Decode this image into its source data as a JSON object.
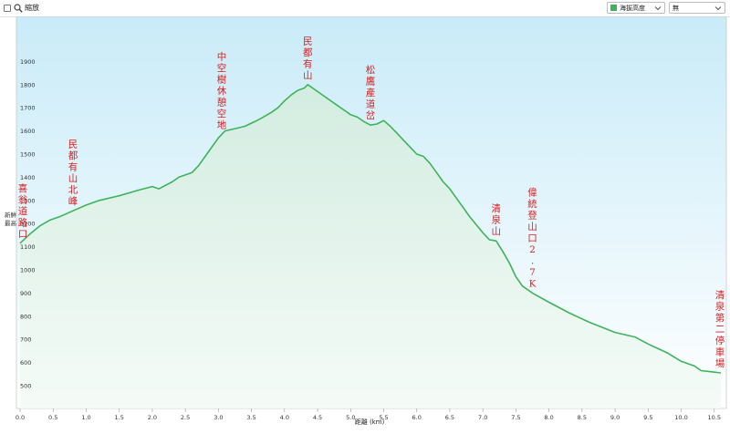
{
  "toolbar": {
    "zoom_label": "縮放",
    "series_select": "海拔高度",
    "second_select": "無",
    "icons": [
      "checkbox",
      "zoom-icon",
      "chevron-down-icon"
    ]
  },
  "colors": {
    "line": "#3db35a",
    "fill_top": "#d3ecdf",
    "plot_top": "#c9ebf8",
    "plot_bottom": "#ffffff",
    "waypoint_text": "#d62020"
  },
  "chart_data": {
    "type": "area",
    "xlabel": "距離 (km)",
    "ylabel": "",
    "xlim": [
      0,
      10.6
    ],
    "ylim": [
      370,
      2000
    ],
    "x_ticks": [
      "0.0",
      "0.5",
      "1.0",
      "1.5",
      "2.0",
      "2.5",
      "3.0",
      "3.5",
      "4.0",
      "4.5",
      "5.0",
      "5.5",
      "6.0",
      "6.5",
      "7.0",
      "7.5",
      "8.0",
      "8.5",
      "9.0",
      "9.5",
      "10.0",
      "10.5"
    ],
    "y_ticks": [
      "500",
      "600",
      "700",
      "800",
      "900",
      "1000",
      "1100",
      "1200",
      "1300",
      "1400",
      "1500",
      "1600",
      "1700",
      "1800",
      "1900"
    ],
    "grid": false,
    "series": [
      {
        "x": [
          0,
          0.15,
          0.3,
          0.45,
          0.6,
          0.8,
          1.0,
          1.2,
          1.5,
          1.8,
          2.0,
          2.1,
          2.3,
          2.4,
          2.5,
          2.6,
          2.7,
          2.8,
          2.9,
          3.0,
          3.1,
          3.25,
          3.4,
          3.55,
          3.65,
          3.8,
          3.9,
          4.0,
          4.1,
          4.2,
          4.3,
          4.35,
          4.5,
          4.6,
          4.8,
          5.0,
          5.1,
          5.2,
          5.3,
          5.4,
          5.5,
          5.6,
          5.7,
          5.8,
          5.9,
          6.0,
          6.1,
          6.2,
          6.3,
          6.4,
          6.5,
          6.6,
          6.8,
          7.0,
          7.1,
          7.2,
          7.3,
          7.4,
          7.5,
          7.6,
          7.75,
          8.0,
          8.3,
          8.6,
          9.0,
          9.3,
          9.5,
          9.8,
          10.0,
          10.2,
          10.3,
          10.45,
          10.6
        ],
        "y": [
          1115,
          1155,
          1190,
          1215,
          1230,
          1255,
          1280,
          1300,
          1320,
          1345,
          1360,
          1350,
          1380,
          1400,
          1410,
          1420,
          1450,
          1490,
          1530,
          1570,
          1600,
          1610,
          1620,
          1640,
          1655,
          1680,
          1700,
          1730,
          1755,
          1775,
          1785,
          1800,
          1770,
          1750,
          1710,
          1670,
          1660,
          1640,
          1625,
          1630,
          1645,
          1620,
          1590,
          1560,
          1530,
          1500,
          1490,
          1460,
          1420,
          1380,
          1350,
          1310,
          1230,
          1160,
          1130,
          1125,
          1080,
          1030,
          970,
          930,
          900,
          860,
          815,
          775,
          730,
          710,
          680,
          640,
          605,
          585,
          565,
          560,
          555
        ]
      }
    ]
  },
  "waypoints": [
    {
      "label": "喜翁道路口",
      "km": 0.0,
      "elev": 1115
    },
    {
      "label": "民都有山北峰",
      "km": 0.8,
      "elev": 1255
    },
    {
      "label": "中空樹休憩空地",
      "km": 3.05,
      "elev": 1585
    },
    {
      "label": "民都有山",
      "km": 4.35,
      "elev": 1800
    },
    {
      "label": "松鷹產道岔",
      "km": 5.3,
      "elev": 1625
    },
    {
      "label": "清泉山",
      "km": 7.2,
      "elev": 1125
    },
    {
      "label": "偉統登山口2.7K",
      "km": 7.75,
      "elev": 900
    },
    {
      "label": "清泉第二停車場",
      "km": 10.6,
      "elev": 555
    }
  ],
  "edge_labels": [
    "新鮮",
    "最高"
  ]
}
